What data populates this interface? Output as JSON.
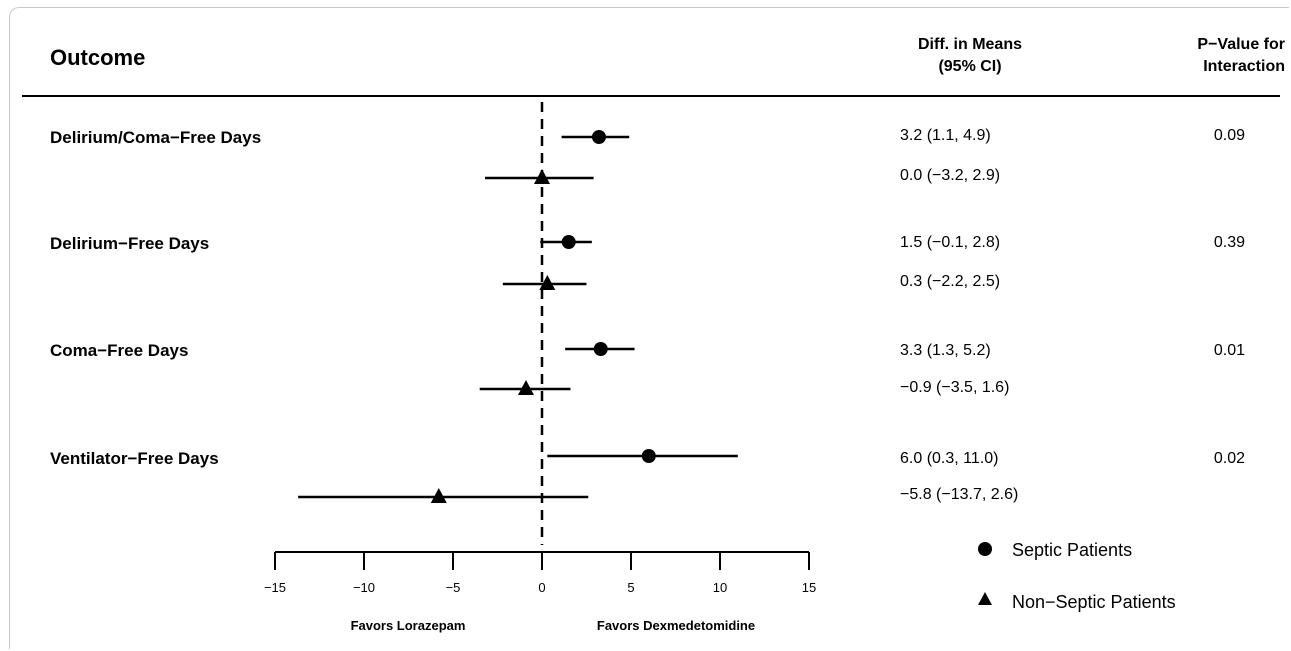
{
  "header": {
    "outcome": "Outcome",
    "diff_line1": "Diff. in Means",
    "diff_line2": "(95% CI)",
    "pval_line1": "P−Value for",
    "pval_line2": "Interaction"
  },
  "rows": [
    {
      "label": "Delirium/Coma−Free Days",
      "septic_ci": "3.2 (1.1, 4.9)",
      "nonseptic_ci": "0.0 (−3.2, 2.9)",
      "pvalue": "0.09"
    },
    {
      "label": "Delirium−Free Days",
      "septic_ci": "1.5 (−0.1, 2.8)",
      "nonseptic_ci": "0.3 (−2.2, 2.5)",
      "pvalue": "0.39"
    },
    {
      "label": "Coma−Free Days",
      "septic_ci": "3.3 (1.3, 5.2)",
      "nonseptic_ci": "−0.9 (−3.5, 1.6)",
      "pvalue": "0.01"
    },
    {
      "label": "Ventilator−Free Days",
      "septic_ci": "6.0 (0.3, 11.0)",
      "nonseptic_ci": "−5.8 (−13.7, 2.6)",
      "pvalue": "0.02"
    }
  ],
  "chart_data": {
    "type": "scatter",
    "subtype": "forest",
    "xlim": [
      -15,
      15
    ],
    "xticks": [
      -15,
      -10,
      -5,
      0,
      5,
      10,
      15
    ],
    "xtick_labels": [
      "−15",
      "−10",
      "−5",
      "0",
      "5",
      "10",
      "15"
    ],
    "reference_line": 0,
    "categories": [
      "Delirium/Coma−Free Days",
      "Delirium−Free Days",
      "Coma−Free Days",
      "Ventilator−Free Days"
    ],
    "series": [
      {
        "name": "Septic Patients",
        "marker": "circle",
        "estimates": [
          3.2,
          1.5,
          3.3,
          6.0
        ],
        "lower": [
          1.1,
          -0.1,
          1.3,
          0.3
        ],
        "upper": [
          4.9,
          2.8,
          5.2,
          11.0
        ]
      },
      {
        "name": "Non−Septic Patients",
        "marker": "triangle",
        "estimates": [
          0.0,
          0.3,
          -0.9,
          -5.8
        ],
        "lower": [
          -3.2,
          -2.2,
          -3.5,
          -13.7
        ],
        "upper": [
          2.9,
          2.5,
          1.6,
          2.6
        ]
      }
    ],
    "favor_left": "Favors Lorazepam",
    "favor_right": "Favors Dexmedetomidine",
    "legend_position": "bottom-right",
    "pvalues": [
      "0.09",
      "0.39",
      "0.01",
      "0.02"
    ]
  }
}
